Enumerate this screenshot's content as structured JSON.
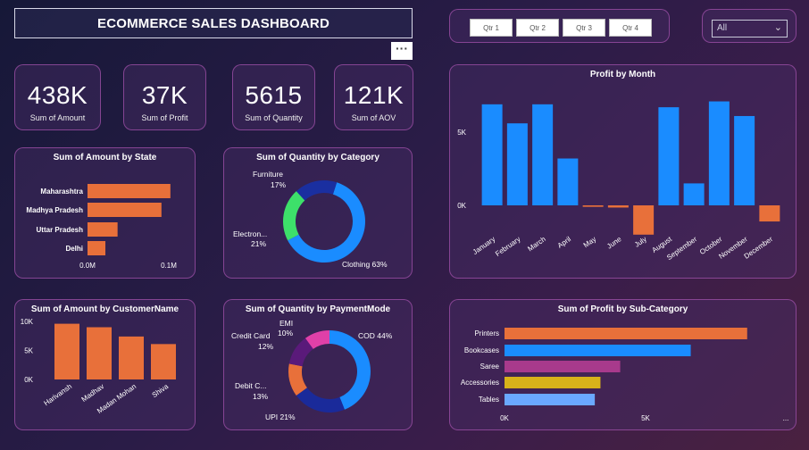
{
  "header": {
    "title": "ECOMMERCE SALES DASHBOARD",
    "more_label": "···"
  },
  "slicer": {
    "quarters": [
      "Qtr 1",
      "Qtr 2",
      "Qtr 3",
      "Qtr 4"
    ]
  },
  "filter": {
    "value": "All"
  },
  "kpis": [
    {
      "value": "438K",
      "label": "Sum of Amount"
    },
    {
      "value": "37K",
      "label": "Sum of Profit"
    },
    {
      "value": "5615",
      "label": "Sum of Quantity"
    },
    {
      "value": "121K",
      "label": "Sum of AOV"
    }
  ],
  "colors": {
    "orange": "#e8703a",
    "blue": "#1a8cff",
    "green": "#3de06a",
    "navy": "#1a2fa0",
    "purple": "#a83a8c",
    "yellow": "#d8b21a",
    "lightblue": "#6aa8ff",
    "magenta": "#e040a8",
    "darkpurple": "#5a1a7a",
    "navy2": "#1a2a9a"
  },
  "chart_data": [
    {
      "id": "state",
      "type": "bar",
      "orientation": "horizontal",
      "title": "Sum of Amount by State",
      "categories": [
        "Maharashtra",
        "Madhya Pradesh",
        "Uttar Pradesh",
        "Delhi"
      ],
      "values": [
        0.102,
        0.091,
        0.037,
        0.022
      ],
      "xlim": [
        0,
        0.12
      ],
      "ticks": [
        {
          "v": 0,
          "label": "0.0M"
        },
        {
          "v": 0.1,
          "label": "0.1M"
        }
      ]
    },
    {
      "id": "category",
      "type": "pie",
      "donut": true,
      "title": "Sum of Quantity by Category",
      "slices": [
        {
          "name": "Clothing",
          "pct": 63,
          "label": "Clothing 63%",
          "color": "#1a8cff"
        },
        {
          "name": "Electronics",
          "pct": 21,
          "label": "Electron... 21%",
          "label1": "Electron...",
          "label2": "21%",
          "color": "#3de06a"
        },
        {
          "name": "Furniture",
          "pct": 17,
          "label1": "Furniture",
          "label2": "17%",
          "color": "#1a2fa0"
        }
      ]
    },
    {
      "id": "month",
      "type": "bar",
      "title": "Profit by Month",
      "categories": [
        "January",
        "February",
        "March",
        "April",
        "May",
        "June",
        "July",
        "August",
        "September",
        "October",
        "November",
        "December"
      ],
      "values": [
        6900,
        5600,
        6900,
        3200,
        -100,
        -150,
        -2000,
        6700,
        1500,
        7100,
        6100,
        -1100
      ],
      "ylim": [
        -2500,
        8000
      ],
      "ticks": [
        {
          "v": 0,
          "label": "0K"
        },
        {
          "v": 5000,
          "label": "5K"
        }
      ],
      "colors": {
        "positive": "#1a8cff",
        "negative": "#e8703a"
      }
    },
    {
      "id": "customer",
      "type": "bar",
      "title": "Sum of Amount by CustomerName",
      "categories": [
        "Harivansh",
        "Madhav",
        "Madan Mohan",
        "Shiva"
      ],
      "values": [
        9600,
        9000,
        7400,
        6100
      ],
      "ylim": [
        0,
        10000
      ],
      "ticks": [
        {
          "v": 0,
          "label": "0K"
        },
        {
          "v": 5000,
          "label": "5K"
        },
        {
          "v": 10000,
          "label": "10K"
        }
      ]
    },
    {
      "id": "payment",
      "type": "pie",
      "donut": true,
      "title": "Sum of Quantity by PaymentMode",
      "slices": [
        {
          "name": "COD",
          "pct": 44,
          "label1": "COD 44%",
          "color": "#1a8cff"
        },
        {
          "name": "UPI",
          "pct": 21,
          "label1": "UPI 21%",
          "color": "#1a2a9a"
        },
        {
          "name": "Debit Card",
          "pct": 13,
          "label1": "Debit C...",
          "label2": "13%",
          "color": "#e8703a"
        },
        {
          "name": "Credit Card",
          "pct": 12,
          "label1": "Credit Card",
          "label2": "12%",
          "color": "#5a1a7a"
        },
        {
          "name": "EMI",
          "pct": 10,
          "label1": "EMI",
          "label2": "10%",
          "color": "#e040a8"
        }
      ]
    },
    {
      "id": "subcat",
      "type": "bar",
      "orientation": "horizontal",
      "title": "Sum of Profit by Sub-Category",
      "categories": [
        "Printers",
        "Bookcases",
        "Saree",
        "Accessories",
        "Tables"
      ],
      "values": [
        8600,
        6600,
        4100,
        3400,
        3200
      ],
      "colors": [
        "#e8703a",
        "#1a8cff",
        "#a83a8c",
        "#d8b21a",
        "#6aa8ff"
      ],
      "xlim": [
        0,
        10000
      ],
      "ticks": [
        {
          "v": 0,
          "label": "0K"
        },
        {
          "v": 5000,
          "label": "5K"
        },
        {
          "v": 10000,
          "label": "..."
        }
      ]
    }
  ]
}
